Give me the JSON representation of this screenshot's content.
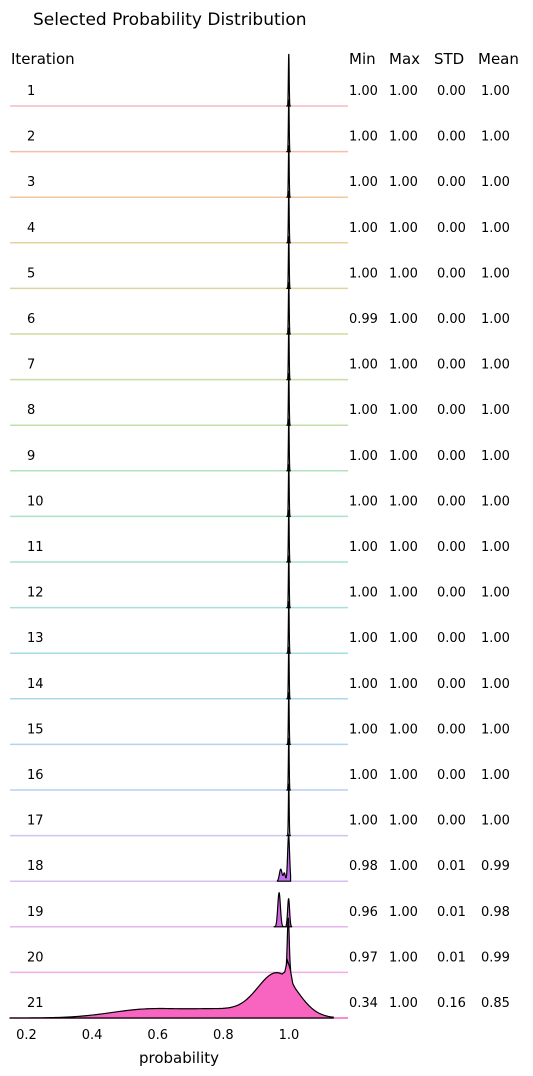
{
  "chart_data": {
    "type": "ridgeline",
    "title": "Selected Probability Distribution",
    "xlabel": "probability",
    "xlim": [
      0.15,
      1.18
    ],
    "xticks": [
      "0.2",
      "0.4",
      "0.6",
      "0.8",
      "1.0"
    ],
    "xtick_values": [
      0.2,
      0.4,
      0.6,
      0.8,
      1.0
    ],
    "row_header": "Iteration",
    "stat_headers": [
      "Min",
      "Max",
      "STD",
      "Mean"
    ],
    "rows": [
      {
        "iteration": "1",
        "min": "1.00",
        "max": "1.00",
        "std": "0.00",
        "mean": "1.00",
        "color": "#f5b8c4"
      },
      {
        "iteration": "2",
        "min": "1.00",
        "max": "1.00",
        "std": "0.00",
        "mean": "1.00",
        "color": "#f6bda8"
      },
      {
        "iteration": "3",
        "min": "1.00",
        "max": "1.00",
        "std": "0.00",
        "mean": "1.00",
        "color": "#f3c7a0"
      },
      {
        "iteration": "4",
        "min": "1.00",
        "max": "1.00",
        "std": "0.00",
        "mean": "1.00",
        "color": "#e8cf9e"
      },
      {
        "iteration": "5",
        "min": "1.00",
        "max": "1.00",
        "std": "0.00",
        "mean": "1.00",
        "color": "#ddd59d"
      },
      {
        "iteration": "6",
        "min": "0.99",
        "max": "1.00",
        "std": "0.00",
        "mean": "1.00",
        "color": "#d3d99d"
      },
      {
        "iteration": "7",
        "min": "1.00",
        "max": "1.00",
        "std": "0.00",
        "mean": "1.00",
        "color": "#c8dca3"
      },
      {
        "iteration": "8",
        "min": "1.00",
        "max": "1.00",
        "std": "0.00",
        "mean": "1.00",
        "color": "#bde0ac"
      },
      {
        "iteration": "9",
        "min": "1.00",
        "max": "1.00",
        "std": "0.00",
        "mean": "1.00",
        "color": "#b3e2bb"
      },
      {
        "iteration": "10",
        "min": "1.00",
        "max": "1.00",
        "std": "0.00",
        "mean": "1.00",
        "color": "#ace2c8"
      },
      {
        "iteration": "11",
        "min": "1.00",
        "max": "1.00",
        "std": "0.00",
        "mean": "1.00",
        "color": "#a8e1d3"
      },
      {
        "iteration": "12",
        "min": "1.00",
        "max": "1.00",
        "std": "0.00",
        "mean": "1.00",
        "color": "#a6e0dd"
      },
      {
        "iteration": "13",
        "min": "1.00",
        "max": "1.00",
        "std": "0.00",
        "mean": "1.00",
        "color": "#a7dde5"
      },
      {
        "iteration": "14",
        "min": "1.00",
        "max": "1.00",
        "std": "0.00",
        "mean": "1.00",
        "color": "#abd9ec"
      },
      {
        "iteration": "15",
        "min": "1.00",
        "max": "1.00",
        "std": "0.00",
        "mean": "1.00",
        "color": "#b2d4f2"
      },
      {
        "iteration": "16",
        "min": "1.00",
        "max": "1.00",
        "std": "0.00",
        "mean": "1.00",
        "color": "#bccdf5"
      },
      {
        "iteration": "17",
        "min": "1.00",
        "max": "1.00",
        "std": "0.00",
        "mean": "1.00",
        "color": "#c9c6f5"
      },
      {
        "iteration": "18",
        "min": "0.98",
        "max": "1.00",
        "std": "0.01",
        "mean": "0.99",
        "color": "#d8bef3"
      },
      {
        "iteration": "19",
        "min": "0.96",
        "max": "1.00",
        "std": "0.01",
        "mean": "0.98",
        "color": "#e6b6ef"
      },
      {
        "iteration": "20",
        "min": "0.97",
        "max": "1.00",
        "std": "0.01",
        "mean": "0.99",
        "color": "#f1aee6"
      },
      {
        "iteration": "21",
        "min": "0.34",
        "max": "1.00",
        "std": "0.16",
        "mean": "0.85",
        "color": "#f765c1"
      }
    ],
    "filled_colors": {
      "18": "#c06df0",
      "19": "#d65fe8",
      "20": "#e85ad8",
      "21": "#f765c1"
    }
  }
}
